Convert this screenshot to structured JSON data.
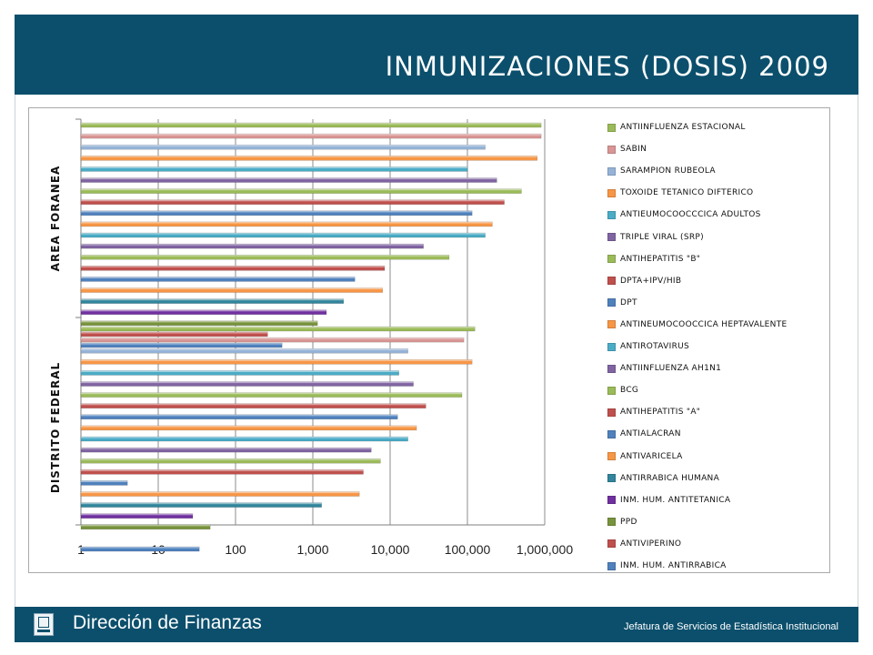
{
  "banner": {
    "title": "INMUNIZACIONES  (DOSIS) 2009",
    "color": "#0b4f6c"
  },
  "footer": {
    "title": "Dirección de Finanzas",
    "subtitle": "Jefatura de Servicios de Estadística Institucional"
  },
  "chart_data": {
    "type": "bar",
    "orientation": "horizontal",
    "scale": "log",
    "xlim": [
      1,
      1000000
    ],
    "xticks": [
      "1",
      "10",
      "100",
      "1,000",
      "10,000",
      "100,000",
      "1,000,000"
    ],
    "grid": true,
    "legend_position": "right",
    "groups": [
      "AREA FORANEA",
      "DISTRITO FEDERAL"
    ],
    "series": [
      {
        "name": "ANTIINFLUENZA ESTACIONAL",
        "color": "#9bbb59",
        "values": [
          900000,
          125000
        ]
      },
      {
        "name": "SABIN",
        "color": "#d99694",
        "values": [
          900000,
          90000
        ]
      },
      {
        "name": "SARAMPION RUBEOLA",
        "color": "#95b3d7",
        "values": [
          170000,
          17000
        ]
      },
      {
        "name": "TOXOIDE TETANICO DIFTERICO",
        "color": "#f79646",
        "values": [
          800000,
          115000
        ]
      },
      {
        "name": "ANTIEUMOCOOCCCICA ADULTOS",
        "color": "#4bacc6",
        "values": [
          100000,
          13000
        ]
      },
      {
        "name": "TRIPLE VIRAL (SRP)",
        "color": "#8064a2",
        "values": [
          240000,
          20000
        ]
      },
      {
        "name": "ANTIHEPATITIS \"B\"",
        "color": "#9bbb59",
        "values": [
          500000,
          85000
        ]
      },
      {
        "name": "DPTA+IPV/HIB",
        "color": "#c0504d",
        "values": [
          300000,
          29000
        ]
      },
      {
        "name": "DPT",
        "color": "#4f81bd",
        "values": [
          115000,
          12500
        ]
      },
      {
        "name": "ANTINEUMOCOOCCICA HEPTAVALENTE",
        "color": "#f79646",
        "values": [
          210000,
          22000
        ]
      },
      {
        "name": "ANTIROTAVIRUS",
        "color": "#4bacc6",
        "values": [
          170000,
          17000
        ]
      },
      {
        "name": "ANTIINFLUENZA AH1N1",
        "color": "#8064a2",
        "values": [
          27000,
          5700
        ]
      },
      {
        "name": "BCG",
        "color": "#9bbb59",
        "values": [
          58000,
          7500
        ]
      },
      {
        "name": "ANTIHEPATITIS \"A\"",
        "color": "#c0504d",
        "values": [
          8500,
          4500
        ]
      },
      {
        "name": "ANTIALACRAN",
        "color": "#4f81bd",
        "values": [
          3500,
          4
        ]
      },
      {
        "name": "ANTIVARICELA",
        "color": "#f79646",
        "values": [
          8000,
          4000
        ]
      },
      {
        "name": "ANTIRRABICA HUMANA",
        "color": "#31859c",
        "values": [
          2500,
          1300
        ]
      },
      {
        "name": "INM. HUM. ANTITETANICA",
        "color": "#7030a0",
        "values": [
          1500,
          28
        ]
      },
      {
        "name": "PPD",
        "color": "#77933c",
        "values": [
          1150,
          47
        ]
      },
      {
        "name": "ANTIVIPERINO",
        "color": "#c0504d",
        "values": [
          260,
          null
        ]
      },
      {
        "name": "INM. HUM. ANTIRRABICA",
        "color": "#4f81bd",
        "values": [
          400,
          34
        ]
      }
    ]
  }
}
